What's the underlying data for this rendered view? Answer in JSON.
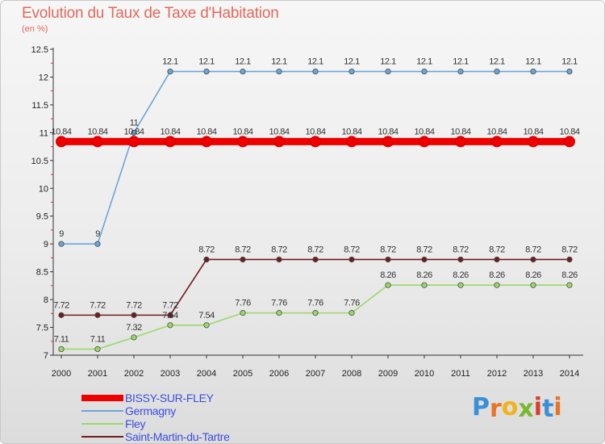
{
  "header": {
    "title": "Evolution du Taux de Taxe d'Habitation",
    "subtitle": "(en %)"
  },
  "logo": {
    "letters": [
      "P",
      "r",
      "o",
      "x",
      "i",
      "t",
      "i"
    ],
    "colors": [
      "#3a8fd6",
      "#e8732a",
      "#f2b21c",
      "#7ab82e",
      "#d8402a",
      "#3a8fd6",
      "#e8732a"
    ]
  },
  "chart_data": {
    "type": "line",
    "title": "Evolution du Taux de Taxe d'Habitation",
    "ylabel": "(en %)",
    "xlabel": "",
    "x": [
      "2000",
      "2001",
      "2002",
      "2003",
      "2004",
      "2005",
      "2006",
      "2007",
      "2008",
      "2009",
      "2010",
      "2011",
      "2012",
      "2013",
      "2014"
    ],
    "ylim": [
      7,
      12.5
    ],
    "yticks": [
      "7",
      "7.5",
      "8",
      "8.5",
      "9",
      "9.5",
      "10",
      "10.5",
      "11",
      "11.5",
      "12",
      "12.5"
    ],
    "grid": false,
    "legend_position": "bottom-left",
    "series": [
      {
        "name": "BISSY-SUR-FLEY",
        "color": "#ee0000",
        "values": [
          10.84,
          10.84,
          10.84,
          10.84,
          10.84,
          10.84,
          10.84,
          10.84,
          10.84,
          10.84,
          10.84,
          10.84,
          10.84,
          10.84,
          10.84
        ],
        "labels": [
          "10.84",
          "10.84",
          "10.84",
          "10.84",
          "10.84",
          "10.84",
          "10.84",
          "10.84",
          "10.84",
          "10.84",
          "10.84",
          "10.84",
          "10.84",
          "10.84",
          "10.84"
        ]
      },
      {
        "name": "Germagny",
        "color": "#6aa6d8",
        "values": [
          9,
          9,
          11,
          12.1,
          12.1,
          12.1,
          12.1,
          12.1,
          12.1,
          12.1,
          12.1,
          12.1,
          12.1,
          12.1,
          12.1
        ],
        "labels": [
          "9",
          "9",
          "11",
          "12.1",
          "12.1",
          "12.1",
          "12.1",
          "12.1",
          "12.1",
          "12.1",
          "12.1",
          "12.1",
          "12.1",
          "12.1",
          "12.1"
        ]
      },
      {
        "name": "Fley",
        "color": "#9ad86a",
        "values": [
          7.11,
          7.11,
          7.32,
          7.54,
          7.54,
          7.76,
          7.76,
          7.76,
          7.76,
          8.26,
          8.26,
          8.26,
          8.26,
          8.26,
          8.26
        ],
        "labels": [
          "7.11",
          "7.11",
          "7.32",
          "7.54",
          "7.54",
          "7.76",
          "7.76",
          "7.76",
          "7.76",
          "8.26",
          "8.26",
          "8.26",
          "8.26",
          "8.26",
          "8.26"
        ]
      },
      {
        "name": "Saint-Martin-du-Tartre",
        "color": "#6e1e1e",
        "values": [
          7.72,
          7.72,
          7.72,
          7.72,
          8.72,
          8.72,
          8.72,
          8.72,
          8.72,
          8.72,
          8.72,
          8.72,
          8.72,
          8.72,
          8.72
        ],
        "labels": [
          "7.72",
          "7.72",
          "7.72",
          "7.72",
          "8.72",
          "8.72",
          "8.72",
          "8.72",
          "8.72",
          "8.72",
          "8.72",
          "8.72",
          "8.72",
          "8.72",
          "8.72"
        ]
      }
    ]
  }
}
